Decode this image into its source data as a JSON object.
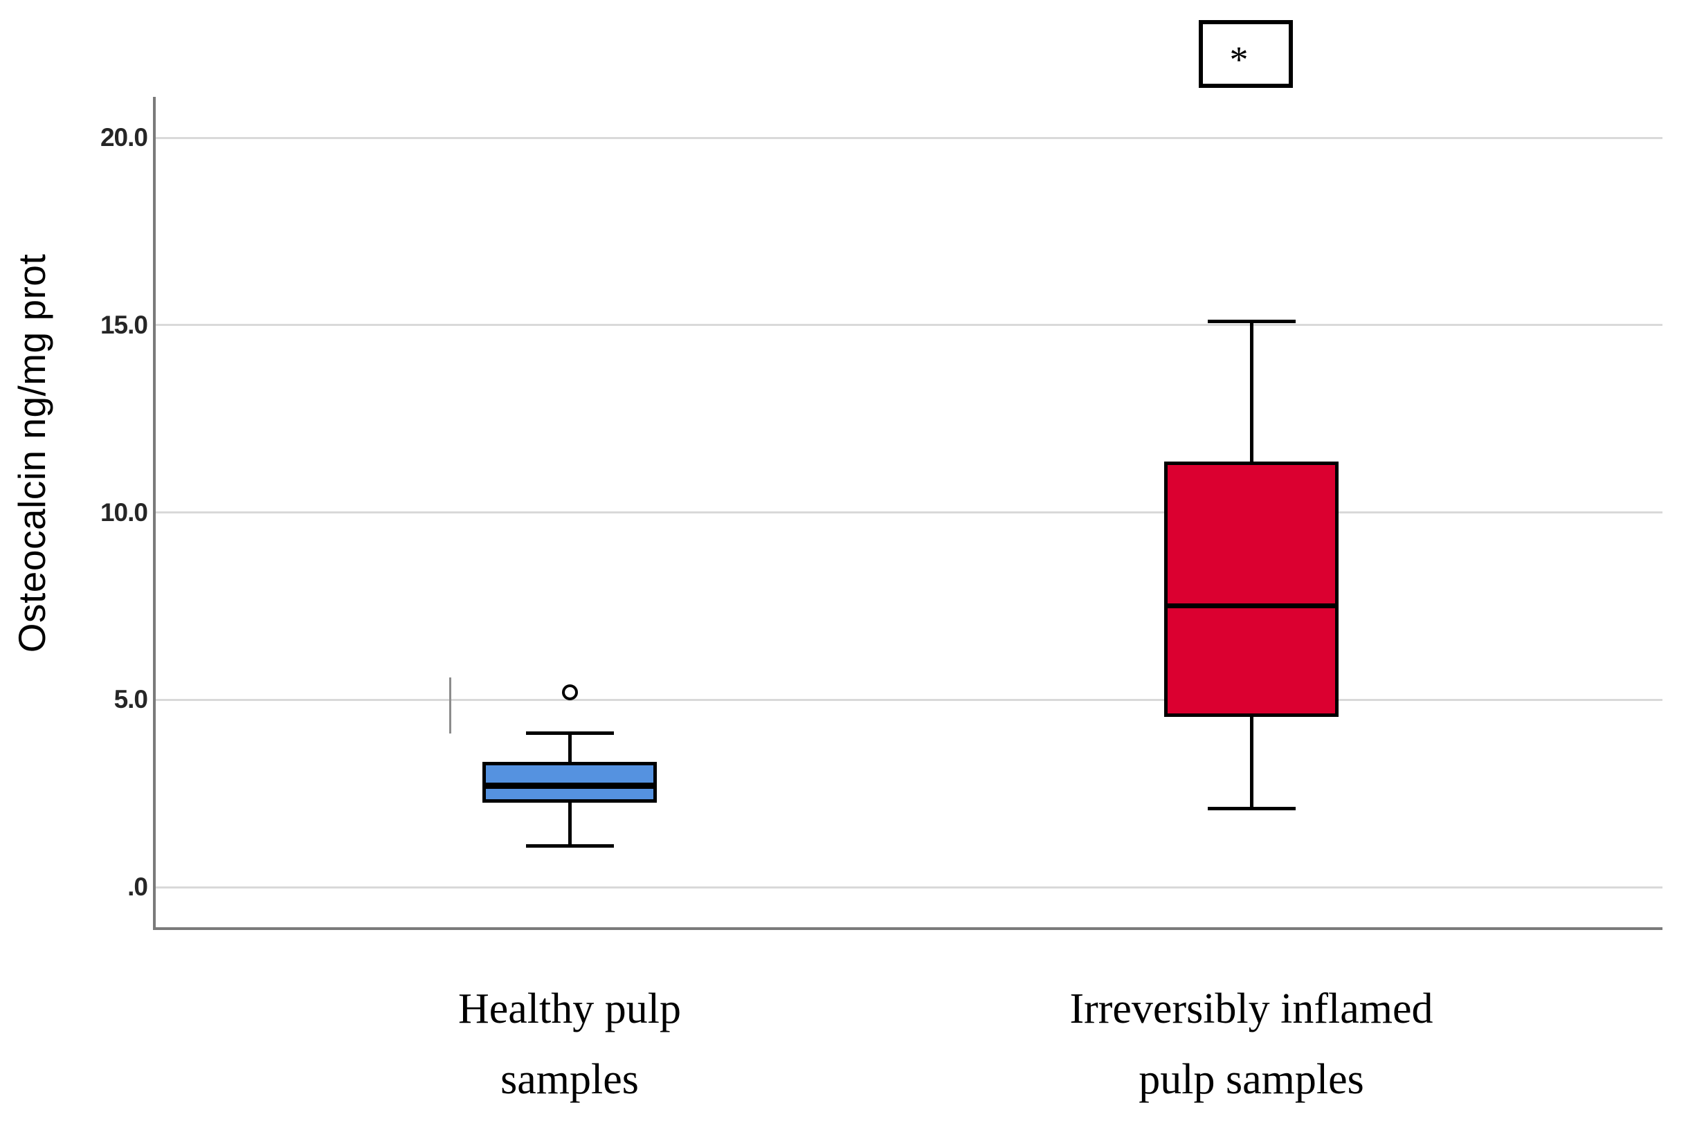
{
  "chart_data": {
    "type": "box",
    "title": "",
    "ylabel": "Osteocalcin ng/mg prot",
    "xlabel": "",
    "ylim": [
      -1.1,
      21.1
    ],
    "grid": "horizontal-only",
    "legend": "none",
    "yticks": [
      {
        "value": 0,
        "label": ".0"
      },
      {
        "value": 5,
        "label": "5.0"
      },
      {
        "value": 10,
        "label": "10.0"
      },
      {
        "value": 15,
        "label": "15.0"
      },
      {
        "value": 20,
        "label": "20.0"
      }
    ],
    "categories": [
      "Healthy pulp samples",
      "Irreversibly inflamed pulp samples"
    ],
    "groups": [
      {
        "name": "healthy-pulp",
        "label_lines": [
          "Healthy pulp",
          "samples"
        ],
        "fill_color": "#5592e0",
        "whisker_low": 1.1,
        "q1": 2.25,
        "median": 2.7,
        "q3": 3.35,
        "whisker_high": 4.1,
        "median_thickness_px": 9,
        "outliers": [
          5.2
        ]
      },
      {
        "name": "irreversibly-inflamed-pulp",
        "label_lines": [
          "Irreversibly inflamed",
          "pulp samples"
        ],
        "fill_color": "#db0030",
        "whisker_low": 2.1,
        "q1": 4.55,
        "median": 7.5,
        "q3": 11.35,
        "whisker_high": 15.1,
        "median_thickness_px": 7,
        "outliers": []
      }
    ],
    "significance_marker": {
      "text": "*",
      "group_index": 1
    },
    "stray_mark": {
      "value_low": 4.1,
      "value_high": 5.6
    },
    "colors": {
      "grid_line": "#d9d9d9",
      "axis_line": "#7a7a7a",
      "box_border": "#000000",
      "whisker": "#000000",
      "tick_label": "#262626",
      "category_label": "#000000",
      "background": "#ffffff"
    }
  }
}
